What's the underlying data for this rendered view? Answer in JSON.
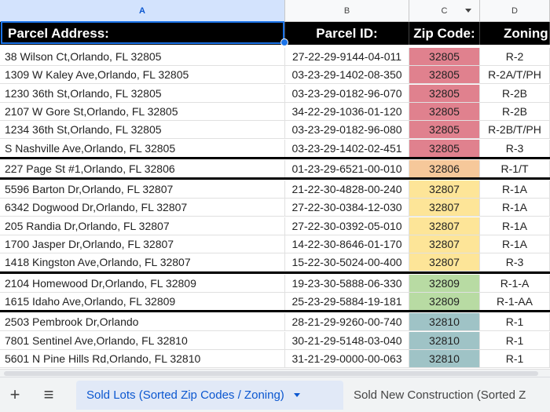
{
  "columns": [
    {
      "letter": "A",
      "selected": true
    },
    {
      "letter": "B",
      "selected": false
    },
    {
      "letter": "C",
      "selected": false,
      "filter": true
    },
    {
      "letter": "D",
      "selected": false
    }
  ],
  "headers": [
    "Parcel Address:",
    "Parcel ID:",
    "Zip Code:",
    "Zoning"
  ],
  "zip_colors": {
    "32805": "#e0818e",
    "32806": "#f6c89a",
    "32807": "#fde598",
    "32809": "#b8dba3",
    "32810": "#9fc3c6"
  },
  "rows": [
    {
      "address": "38 Wilson Ct,Orlando, FL 32805",
      "parcel": "27-22-29-9144-04-011",
      "zip": "32805",
      "zoning": "R-2"
    },
    {
      "address": "1309 W Kaley Ave,Orlando, FL 32805",
      "parcel": "03-23-29-1402-08-350",
      "zip": "32805",
      "zoning": "R-2A/T/PH"
    },
    {
      "address": "1230 36th St,Orlando, FL 32805",
      "parcel": "03-23-29-0182-96-070",
      "zip": "32805",
      "zoning": "R-2B"
    },
    {
      "address": "2107 W Gore St,Orlando, FL 32805",
      "parcel": "34-22-29-1036-01-120",
      "zip": "32805",
      "zoning": "R-2B"
    },
    {
      "address": "1234 36th St,Orlando, FL 32805",
      "parcel": "03-23-29-0182-96-080",
      "zip": "32805",
      "zoning": "R-2B/T/PH"
    },
    {
      "address": "S Nashville Ave,Orlando, FL 32805",
      "parcel": "03-23-29-1402-02-451",
      "zip": "32805",
      "zoning": "R-3"
    },
    {
      "address": "227 Page St #1,Orlando, FL 32806",
      "parcel": "01-23-29-6521-00-010",
      "zip": "32806",
      "zoning": "R-1/T"
    },
    {
      "address": "5596 Barton Dr,Orlando, FL 32807",
      "parcel": "21-22-30-4828-00-240",
      "zip": "32807",
      "zoning": "R-1A"
    },
    {
      "address": "6342 Dogwood Dr,Orlando, FL 32807",
      "parcel": "27-22-30-0384-12-030",
      "zip": "32807",
      "zoning": "R-1A"
    },
    {
      "address": "205 Randia Dr,Orlando, FL 32807",
      "parcel": "27-22-30-0392-05-010",
      "zip": "32807",
      "zoning": "R-1A"
    },
    {
      "address": "1700 Jasper Dr,Orlando, FL 32807",
      "parcel": "14-22-30-8646-01-170",
      "zip": "32807",
      "zoning": "R-1A"
    },
    {
      "address": "1418 Kingston Ave,Orlando, FL 32807",
      "parcel": "15-22-30-5024-00-400",
      "zip": "32807",
      "zoning": "R-3"
    },
    {
      "address": "2104 Homewood Dr,Orlando, FL 32809",
      "parcel": "19-23-30-5888-06-330",
      "zip": "32809",
      "zoning": "R-1-A"
    },
    {
      "address": "1615 Idaho Ave,Orlando, FL 32809",
      "parcel": "25-23-29-5884-19-181",
      "zip": "32809",
      "zoning": "R-1-AA"
    },
    {
      "address": "2503 Pembrook Dr,Orlando",
      "parcel": "28-21-29-9260-00-740",
      "zip": "32810",
      "zoning": "R-1"
    },
    {
      "address": "7801 Sentinel Ave,Orlando, FL 32810",
      "parcel": "30-21-29-5148-03-040",
      "zip": "32810",
      "zoning": "R-1"
    },
    {
      "address": "5601 N Pine Hills Rd,Orlando, FL 32810",
      "parcel": "31-21-29-0000-00-063",
      "zip": "32810",
      "zoning": "R-1"
    }
  ],
  "tabs": {
    "add_icon": "+",
    "menu_icon": "≡",
    "active": "Sold Lots (Sorted Zip Codes / Zoning)",
    "inactive": "Sold New Construction (Sorted Z"
  }
}
